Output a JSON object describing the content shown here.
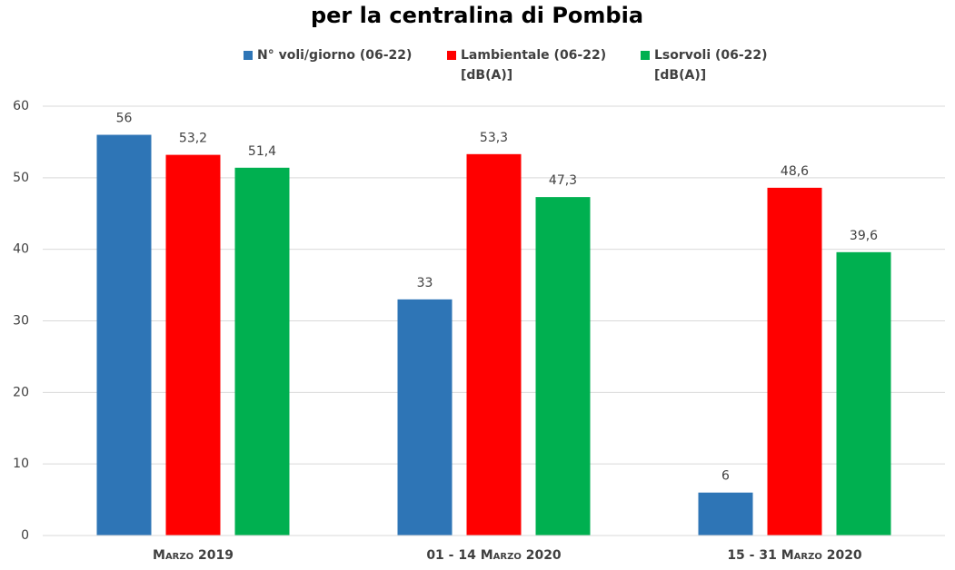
{
  "chart_data": {
    "type": "bar",
    "title": "per la centralina di Pombia",
    "categories": [
      "Marzo 2019",
      "01 - 14 Marzo 2020",
      "15 - 31 Marzo 2020"
    ],
    "series": [
      {
        "name": "N° voli/giorno (06-22)",
        "color": "#2e75b6",
        "values": [
          56,
          33,
          6
        ],
        "value_labels": [
          "56",
          "33",
          "6"
        ]
      },
      {
        "name": "Lambientale (06-22) [dB(A)]",
        "color": "#ff0000",
        "values": [
          53.2,
          53.3,
          48.6
        ],
        "value_labels": [
          "53,2",
          "53,3",
          "48,6"
        ]
      },
      {
        "name": "Lsorvoli (06-22) [dB(A)]",
        "color": "#00b050",
        "values": [
          51.4,
          47.3,
          39.6
        ],
        "value_labels": [
          "51,4",
          "47,3",
          "39,6"
        ]
      }
    ],
    "ylim": [
      0,
      60
    ],
    "yticks": [
      0,
      10,
      20,
      30,
      40,
      50,
      60
    ],
    "grid": true,
    "legend": "top"
  }
}
